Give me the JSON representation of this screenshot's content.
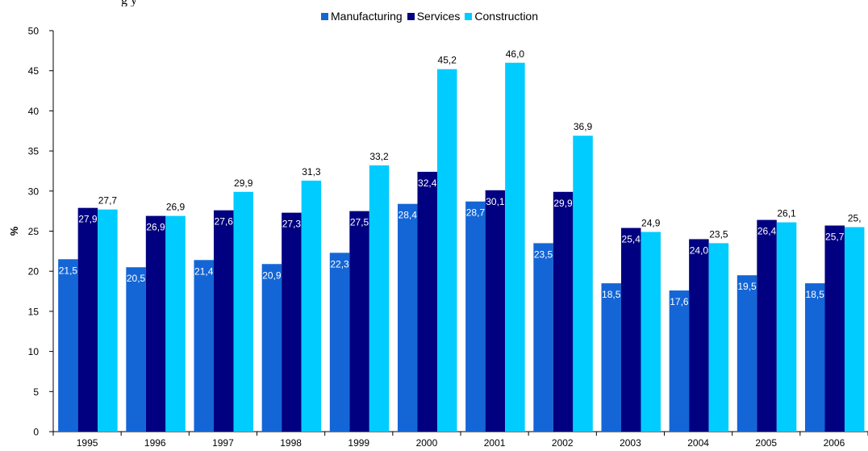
{
  "chart_data": {
    "type": "bar",
    "title": "",
    "title_fragment": "g                                  y",
    "ylabel": "%",
    "xlabel": "",
    "ylim": [
      0,
      50
    ],
    "yticks": [
      0,
      5,
      10,
      15,
      20,
      25,
      30,
      35,
      40,
      45,
      50
    ],
    "ytick_labels": [
      "0",
      "5",
      "10",
      "15",
      "20",
      "25",
      "30",
      "35",
      "40",
      "45",
      "50"
    ],
    "grid": false,
    "legend_position": "top",
    "categories": [
      "1995",
      "1996",
      "1997",
      "1998",
      "1999",
      "2000",
      "2001",
      "2002",
      "2003",
      "2004",
      "2005",
      "2006"
    ],
    "series": [
      {
        "name": "Manufacturing",
        "color": "#1466d6",
        "values": [
          21.5,
          20.5,
          21.4,
          20.9,
          22.3,
          28.4,
          28.7,
          23.5,
          18.5,
          17.6,
          19.5,
          18.5
        ],
        "labels": [
          "21,5",
          "20,5",
          "21,4",
          "20,9",
          "22,3",
          "28,4",
          "28,7",
          "23,5",
          "18,5",
          "17,6",
          "19,5",
          "18,5"
        ],
        "label_position": "inside"
      },
      {
        "name": "Services",
        "color": "#000080",
        "values": [
          27.9,
          26.9,
          27.6,
          27.3,
          27.5,
          32.4,
          30.1,
          29.9,
          25.4,
          24.0,
          26.4,
          25.7
        ],
        "labels": [
          "27,9",
          "26,9",
          "27,6",
          "27,3",
          "27,5",
          "32,4",
          "30,1",
          "29,9",
          "25,4",
          "24,0",
          "26,4",
          "25,7"
        ],
        "label_position": "inside"
      },
      {
        "name": "Construction",
        "color": "#00ccff",
        "values": [
          27.7,
          26.9,
          29.9,
          31.3,
          33.2,
          45.2,
          46.0,
          36.9,
          24.9,
          23.5,
          26.1,
          25.5
        ],
        "labels": [
          "27,7",
          "26,9",
          "29,9",
          "31,3",
          "33,2",
          "45,2",
          "46,0",
          "36,9",
          "24,9",
          "23,5",
          "26,1",
          "25,"
        ],
        "label_position": "above"
      }
    ]
  }
}
